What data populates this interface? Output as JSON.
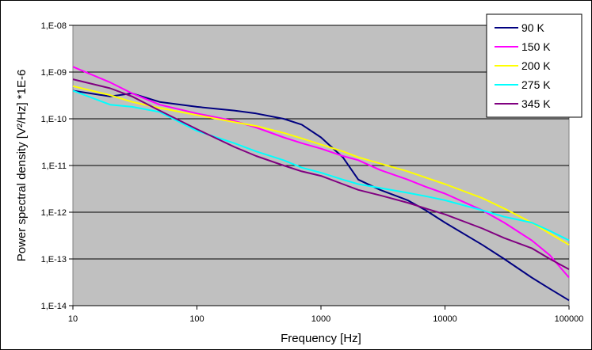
{
  "chart_data": {
    "type": "line",
    "title": "",
    "xlabel": "Frequency  [Hz]",
    "ylabel": "Power spectral density [V²/Hz] *1E-6",
    "x_scale": "log",
    "y_scale": "log",
    "xlim": [
      10,
      100000
    ],
    "ylim": [
      1e-14,
      1e-08
    ],
    "x_ticks": [
      10,
      100,
      1000,
      10000,
      100000
    ],
    "x_tick_labels": [
      "10",
      "100",
      "1000",
      "10000",
      "100000"
    ],
    "y_ticks": [
      1e-08,
      1e-09,
      1e-10,
      1e-11,
      1e-12,
      1e-13,
      1e-14
    ],
    "y_tick_labels": [
      "1,E-08",
      "1,E-09",
      "1,E-10",
      "1,E-11",
      "1,E-12",
      "1,E-13",
      "1,E-14"
    ],
    "grid": "horizontal",
    "plot_background": "#c0c0c0",
    "legend_position": "top-right",
    "series": [
      {
        "name": "90 K",
        "color": "#000080",
        "x": [
          10,
          20,
          30,
          50,
          100,
          200,
          300,
          500,
          700,
          1000,
          1500,
          2000,
          3000,
          5000,
          7000,
          10000,
          20000,
          30000,
          50000,
          70000,
          100000
        ],
        "y": [
          4e-10,
          3e-10,
          3.5e-10,
          2.3e-10,
          1.8e-10,
          1.5e-10,
          1.3e-10,
          1e-10,
          7.5e-11,
          4e-11,
          1.5e-11,
          5e-12,
          3e-12,
          1.8e-12,
          1.1e-12,
          6e-13,
          2e-13,
          1e-13,
          4e-14,
          2.3e-14,
          1.3e-14
        ]
      },
      {
        "name": "150 K",
        "color": "#ff00ff",
        "x": [
          10,
          20,
          30,
          50,
          100,
          200,
          300,
          500,
          700,
          1000,
          1500,
          2000,
          3000,
          5000,
          7000,
          10000,
          20000,
          30000,
          50000,
          70000,
          100000
        ],
        "y": [
          1.3e-09,
          6e-10,
          3.5e-10,
          2e-10,
          1.3e-10,
          9e-11,
          6.5e-11,
          4e-11,
          3e-11,
          2.3e-11,
          1.6e-11,
          1.3e-11,
          8e-12,
          5e-12,
          3.5e-12,
          2.5e-12,
          1.1e-12,
          6e-13,
          2.5e-13,
          1.2e-13,
          4e-14
        ]
      },
      {
        "name": "200 K",
        "color": "#ffff00",
        "x": [
          10,
          20,
          30,
          50,
          100,
          200,
          300,
          500,
          700,
          1000,
          1500,
          2000,
          3000,
          5000,
          7000,
          10000,
          20000,
          30000,
          50000,
          70000,
          100000
        ],
        "y": [
          5e-10,
          3.2e-10,
          2.3e-10,
          1.7e-10,
          1.2e-10,
          8.5e-11,
          7e-11,
          5e-11,
          3.8e-11,
          2.8e-11,
          2e-11,
          1.5e-11,
          1.1e-11,
          7.5e-12,
          5.5e-12,
          4e-12,
          2e-12,
          1.2e-12,
          6e-13,
          3.5e-13,
          2e-13
        ]
      },
      {
        "name": "275 K",
        "color": "#00ffff",
        "x": [
          10,
          20,
          30,
          50,
          100,
          200,
          300,
          500,
          700,
          1000,
          1500,
          2000,
          3000,
          5000,
          7000,
          10000,
          20000,
          30000,
          50000,
          70000,
          100000
        ],
        "y": [
          4e-10,
          2e-10,
          1.8e-10,
          1.4e-10,
          5.5e-11,
          3e-11,
          2e-11,
          1.3e-11,
          9e-12,
          7e-12,
          5e-12,
          4e-12,
          3.3e-12,
          2.6e-12,
          2.2e-12,
          1.8e-12,
          1.1e-12,
          8e-13,
          6e-13,
          4e-13,
          2.5e-13
        ]
      },
      {
        "name": "345 K",
        "color": "#800080",
        "x": [
          10,
          20,
          30,
          50,
          100,
          200,
          300,
          500,
          700,
          1000,
          1500,
          2000,
          3000,
          5000,
          7000,
          10000,
          20000,
          30000,
          50000,
          70000,
          100000
        ],
        "y": [
          7e-10,
          4.5e-10,
          3e-10,
          1.5e-10,
          6e-11,
          2.5e-11,
          1.6e-11,
          1e-11,
          7.5e-12,
          6e-12,
          4e-12,
          3e-12,
          2.3e-12,
          1.6e-12,
          1.2e-12,
          9e-13,
          4.5e-13,
          2.8e-13,
          1.7e-13,
          1e-13,
          6e-14
        ]
      }
    ]
  }
}
